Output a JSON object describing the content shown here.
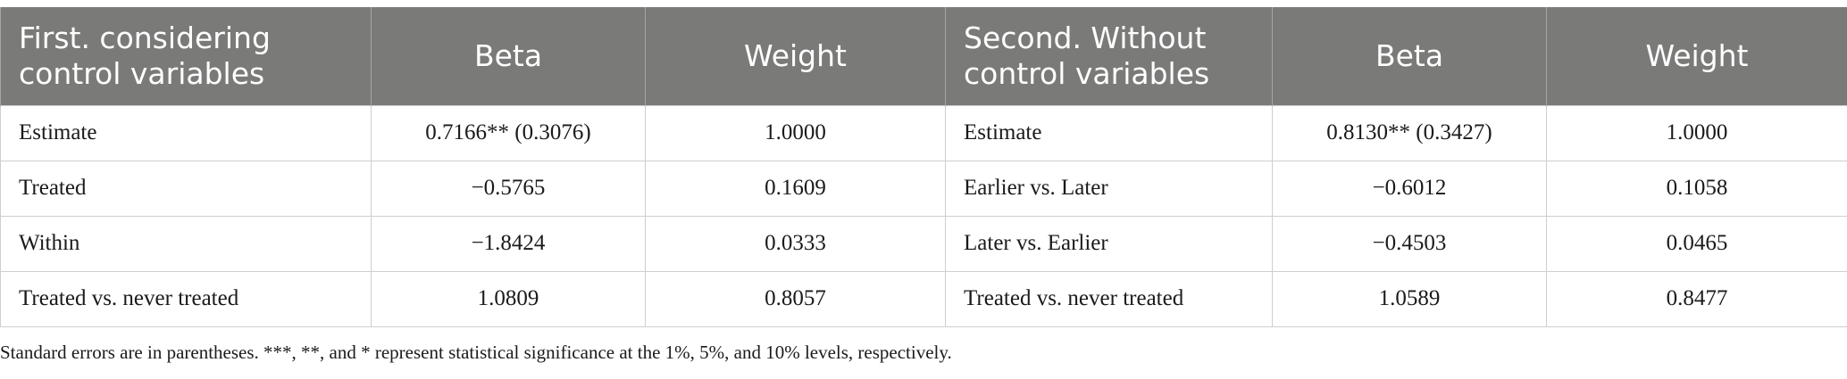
{
  "table": {
    "headers": [
      "First. considering control variables",
      "Beta",
      "Weight",
      "Second. Without control variables",
      "Beta",
      "Weight"
    ],
    "rows": [
      [
        "Estimate",
        "0.7166** (0.3076)",
        "1.0000",
        "Estimate",
        "0.8130** (0.3427)",
        "1.0000"
      ],
      [
        "Treated",
        "−0.5765",
        "0.1609",
        "Earlier vs. Later",
        "−0.6012",
        "0.1058"
      ],
      [
        "Within",
        "−1.8424",
        "0.0333",
        "Later vs. Earlier",
        "−0.4503",
        "0.0465"
      ],
      [
        "Treated vs. never treated",
        "1.0809",
        "0.8057",
        "Treated vs. never treated",
        "1.0589",
        "0.8477"
      ]
    ]
  },
  "footnote": "Standard errors are in parentheses. ***, **, and * represent statistical significance at the 1%, 5%, and 10% levels, respectively."
}
